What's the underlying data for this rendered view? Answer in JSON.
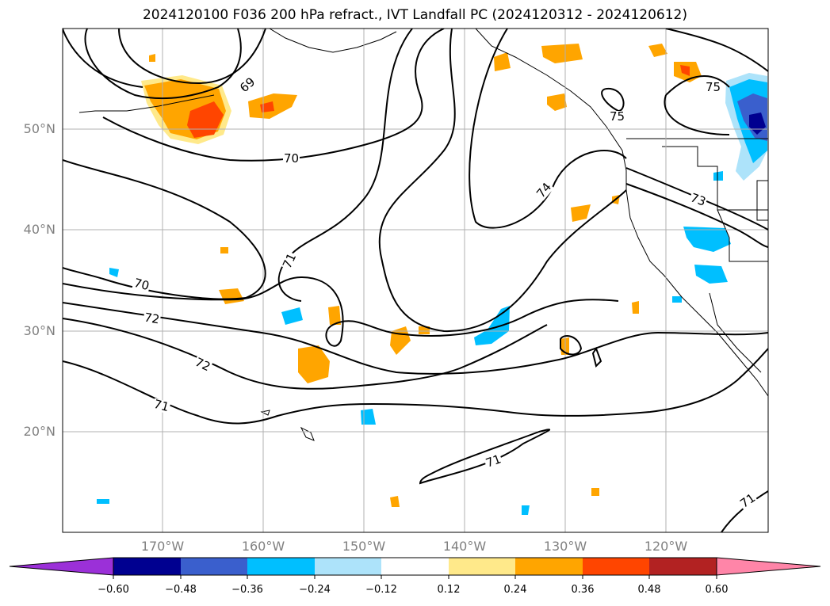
{
  "title": "2024120100 F036 200 hPa refract., IVT Landfall PC (2024120312 - 2024120612)",
  "map": {
    "lat_labels": [
      "50°N",
      "40°N",
      "30°N",
      "20°N"
    ],
    "lon_labels": [
      "170°W",
      "160°W",
      "150°W",
      "140°W",
      "130°W",
      "120°W"
    ],
    "contour_labels": [
      "69",
      "70",
      "70",
      "71",
      "72",
      "72",
      "71",
      "74",
      "75",
      "75",
      "73",
      "71",
      "71"
    ]
  },
  "colorbar": {
    "tick_labels": [
      "−0.60",
      "−0.48",
      "−0.36",
      "−0.24",
      "−0.12",
      "0.12",
      "0.24",
      "0.36",
      "0.48",
      "0.60"
    ],
    "colors": [
      "#9b30d8",
      "#000090",
      "#3a5fcd",
      "#00bfff",
      "#ade3fa",
      "#ffffff",
      "#ffe98a",
      "#ffa500",
      "#ff4500",
      "#b22222",
      "#ff85a8"
    ]
  }
}
